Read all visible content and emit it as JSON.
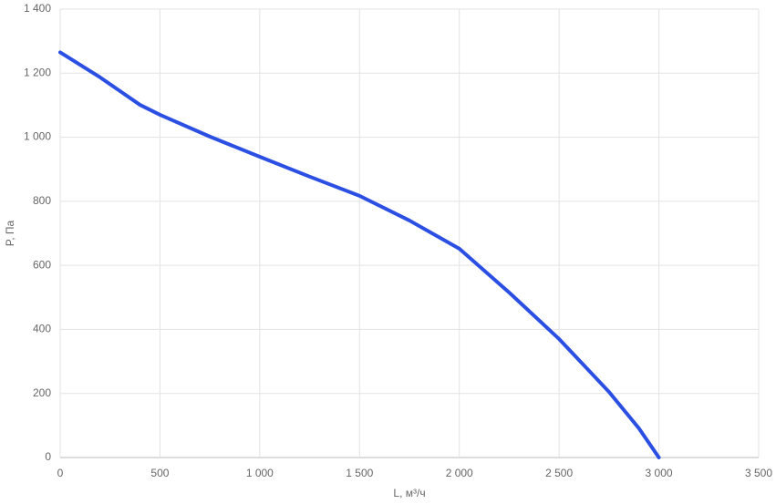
{
  "chart_data": {
    "type": "line",
    "x_label": "L, м³/ч",
    "y_label": "P, Па",
    "x": [
      0,
      200,
      400,
      500,
      750,
      1000,
      1250,
      1500,
      1750,
      2000,
      2250,
      2500,
      2750,
      2900,
      3000
    ],
    "series": [
      {
        "name": "P",
        "color": "#2b4fe3",
        "values": [
          1265,
          1187,
          1101,
          1070,
          1002,
          939,
          877,
          817,
          740,
          652,
          515,
          370,
          205,
          91,
          0
        ]
      }
    ],
    "xlim": [
      0,
      3500
    ],
    "ylim": [
      0,
      1400
    ],
    "xticks": [
      0,
      500,
      {
        "value": 1000,
        "label": "1 000"
      },
      {
        "value": 1500,
        "label": "1 500"
      },
      {
        "value": 2000,
        "label": "2 000"
      },
      {
        "value": 2500,
        "label": "2 500"
      },
      {
        "value": 3000,
        "label": "3 000"
      },
      {
        "value": 3500,
        "label": "3 500"
      }
    ],
    "yticks": [
      0,
      200,
      400,
      600,
      800,
      {
        "value": 1000,
        "label": "1 000"
      },
      {
        "value": 1200,
        "label": "1 200"
      },
      {
        "value": 1400,
        "label": "1 400"
      }
    ],
    "grid": true
  }
}
